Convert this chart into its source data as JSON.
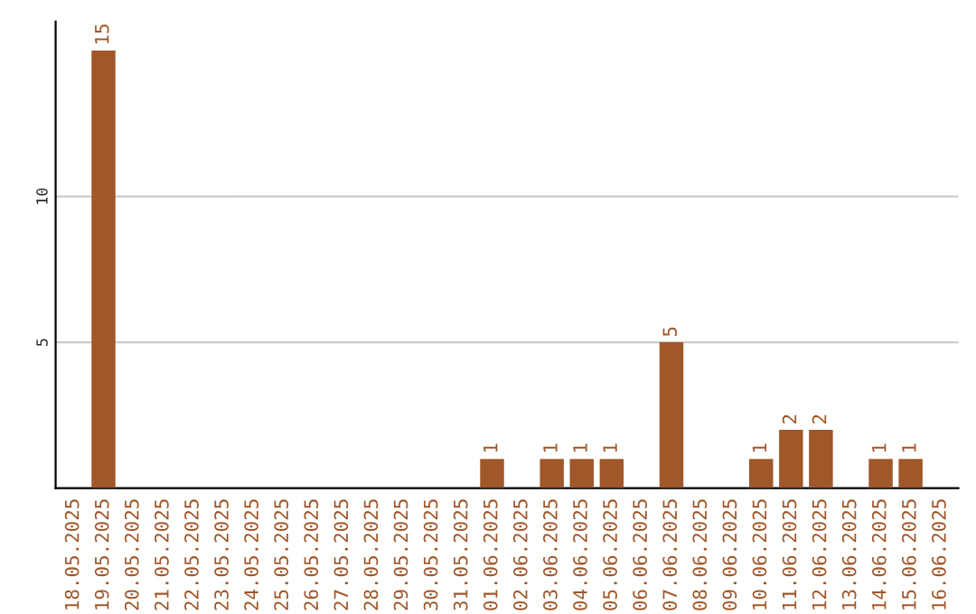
{
  "chart_data": {
    "type": "bar",
    "categories": [
      "18.05.2025",
      "19.05.2025",
      "20.05.2025",
      "21.05.2025",
      "22.05.2025",
      "23.05.2025",
      "24.05.2025",
      "25.05.2025",
      "26.05.2025",
      "27.05.2025",
      "28.05.2025",
      "29.05.2025",
      "30.05.2025",
      "31.05.2025",
      "01.06.2025",
      "02.06.2025",
      "03.06.2025",
      "04.06.2025",
      "05.06.2025",
      "06.06.2025",
      "07.06.2025",
      "08.06.2025",
      "09.06.2025",
      "10.06.2025",
      "11.06.2025",
      "12.06.2025",
      "13.06.2025",
      "14.06.2025",
      "15.06.2025",
      "16.06.2025"
    ],
    "values": [
      0,
      15,
      0,
      0,
      0,
      0,
      0,
      0,
      0,
      0,
      0,
      0,
      0,
      0,
      1,
      0,
      1,
      1,
      1,
      0,
      5,
      0,
      0,
      1,
      2,
      2,
      0,
      1,
      1,
      0
    ],
    "value_labels": [
      null,
      "15",
      null,
      null,
      null,
      null,
      null,
      null,
      null,
      null,
      null,
      null,
      null,
      null,
      "1",
      null,
      "1",
      "1",
      "1",
      null,
      "5",
      null,
      null,
      "1",
      "2",
      "2",
      null,
      "1",
      "1",
      null
    ],
    "color": "#a0572a",
    "ylim": [
      0,
      16
    ],
    "yticks": [
      5,
      10
    ],
    "grid": "y"
  }
}
